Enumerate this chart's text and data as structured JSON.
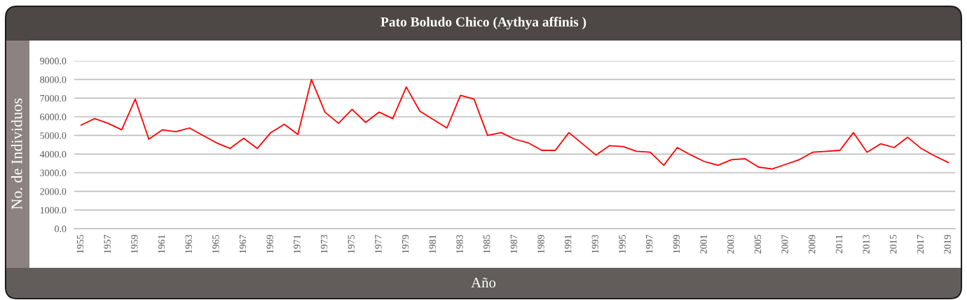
{
  "chart_data": {
    "type": "line",
    "title": "Pato Boludo Chico (Aythya affinis )",
    "xlabel": "Año",
    "ylabel": "No. de Individuos",
    "x": [
      1955,
      1956,
      1957,
      1958,
      1959,
      1960,
      1961,
      1962,
      1963,
      1964,
      1965,
      1966,
      1967,
      1968,
      1969,
      1970,
      1971,
      1972,
      1973,
      1974,
      1975,
      1976,
      1977,
      1978,
      1979,
      1980,
      1981,
      1982,
      1983,
      1984,
      1985,
      1986,
      1987,
      1988,
      1989,
      1990,
      1991,
      1992,
      1993,
      1994,
      1995,
      1996,
      1997,
      1998,
      1999,
      2000,
      2001,
      2002,
      2003,
      2004,
      2005,
      2006,
      2007,
      2008,
      2009,
      2010,
      2011,
      2012,
      2013,
      2014,
      2015,
      2016,
      2017,
      2018,
      2019
    ],
    "series": [
      {
        "color": "#ff0000",
        "values": [
          5550,
          5900,
          5650,
          5300,
          6950,
          4800,
          5300,
          5200,
          5400,
          5000,
          4600,
          4300,
          4850,
          4300,
          5150,
          5600,
          5050,
          8000,
          6250,
          5650,
          6400,
          5700,
          6250,
          5900,
          7600,
          6300,
          5850,
          5400,
          7150,
          6950,
          5000,
          5150,
          4800,
          4600,
          4200,
          4200,
          5150,
          4550,
          3950,
          4450,
          4400,
          4150,
          4100,
          3400,
          4350,
          3950,
          3600,
          3400,
          3700,
          3750,
          3300,
          3200,
          3450,
          3700,
          4100,
          4150,
          4200,
          5150,
          4100,
          4550,
          4350,
          4900,
          4300,
          3900,
          3550
        ]
      }
    ],
    "xlim": [
      1954.5,
      2019.5
    ],
    "xticks": [
      1955,
      1957,
      1959,
      1961,
      1963,
      1965,
      1967,
      1969,
      1971,
      1973,
      1975,
      1977,
      1979,
      1981,
      1983,
      1985,
      1987,
      1989,
      1991,
      1993,
      1995,
      1997,
      1999,
      2001,
      2003,
      2005,
      2007,
      2009,
      2011,
      2013,
      2015,
      2017,
      2019
    ],
    "ylim": [
      0,
      9000
    ],
    "yticks": [
      {
        "value": 0,
        "label": "0.0"
      },
      {
        "value": 1000,
        "label": "1000.0"
      },
      {
        "value": 2000,
        "label": "2000.0"
      },
      {
        "value": 3000,
        "label": "3000.0"
      },
      {
        "value": 4000,
        "label": "4000.0"
      },
      {
        "value": 5000,
        "label": "5000.0"
      },
      {
        "value": 6000,
        "label": "6000.0"
      },
      {
        "value": 7000,
        "label": "7000.0"
      },
      {
        "value": 8000,
        "label": "8000.0"
      },
      {
        "value": 9000,
        "label": "9000.0"
      }
    ],
    "grid": "y",
    "marker": "none",
    "line_style": "solid"
  }
}
